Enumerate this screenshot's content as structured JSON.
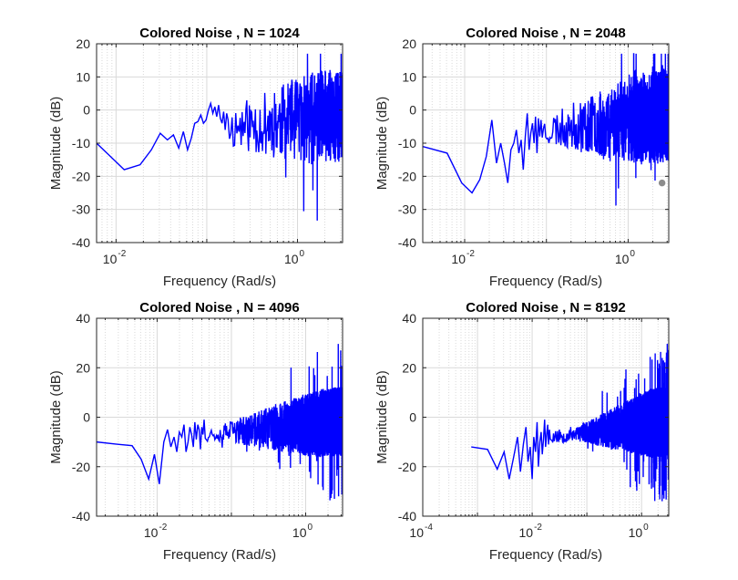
{
  "figure": {
    "background": "#ffffff",
    "line_color": "#0000ff",
    "grid_color": "#d9d9d9",
    "axis_color": "#262626"
  },
  "chart_data": [
    {
      "type": "line",
      "title": "Colored Noise , N = 1024",
      "xlabel": "Frequency (Rad/s)",
      "ylabel": "Magnitude (dB)",
      "xscale": "log",
      "xlim": [
        0.0061,
        3.14
      ],
      "ylim": [
        -40,
        20
      ],
      "xticks": [
        0.01,
        1
      ],
      "xtick_labels": [
        "10",
        "10"
      ],
      "xtick_exponents": [
        "-2",
        "0"
      ],
      "yticks": [
        20,
        10,
        0,
        -10,
        -20,
        -30,
        -40
      ],
      "ytick_labels": [
        "20",
        "10",
        "0",
        "-10",
        "-20",
        "-30",
        "-40"
      ],
      "grid": true,
      "gen": {
        "seed": 11,
        "k": 512,
        "n": 1024
      },
      "series": [
        {
          "x": [
            0.0061,
            0.0123,
            0.0184,
            0.0245,
            0.0307,
            0.0368,
            0.0429,
            0.0491,
            0.0552,
            0.0614,
            0.0675,
            0.0736,
            0.0798,
            0.0859,
            0.092,
            0.0982,
            0.1043,
            0.1104,
            0.1166,
            0.1227,
            0.1288,
            0.135,
            0.1411,
            0.1473,
            0.1534,
            0.1595,
            0.1657,
            0.1718
          ],
          "y": [
            -10,
            -18,
            -16.5,
            -12,
            -7,
            -9,
            -7.5,
            -11.5,
            -6.5,
            -12,
            -8.5,
            -4,
            -3.5,
            -1.5,
            -4,
            -3,
            0,
            2,
            -1,
            1,
            -2,
            1.5,
            -2.5,
            -4,
            -0.5,
            -6,
            -1,
            -3
          ]
        }
      ]
    },
    {
      "type": "line",
      "title": "Colored Noise , N = 2048",
      "xlabel": "Frequency (Rad/s)",
      "ylabel": "Magnitude (dB)",
      "xscale": "log",
      "xlim": [
        0.00307,
        3.14
      ],
      "ylim": [
        -40,
        20
      ],
      "xticks": [
        0.01,
        1
      ],
      "xtick_labels": [
        "10",
        "10"
      ],
      "xtick_exponents": [
        "-2",
        "0"
      ],
      "yticks": [
        20,
        10,
        0,
        -10,
        -20,
        -30,
        -40
      ],
      "ytick_labels": [
        "20",
        "10",
        "0",
        "-10",
        "-20",
        "-30",
        "-40"
      ],
      "grid": true,
      "gen": {
        "seed": 23,
        "k": 1024,
        "n": 2048
      },
      "series": [
        {
          "x": [
            0.00307,
            0.0061,
            0.0092,
            0.0123,
            0.0153,
            0.0184,
            0.0215,
            0.0245,
            0.0276,
            0.0307,
            0.0337,
            0.0368,
            0.0399,
            0.0429,
            0.046,
            0.0491,
            0.0521,
            0.0552,
            0.0583,
            0.0614,
            0.0644,
            0.0675,
            0.0706,
            0.0736,
            0.0767,
            0.0798,
            0.0828,
            0.0859
          ],
          "y": [
            -11,
            -13,
            -22,
            -25,
            -21,
            -14,
            -3,
            -16,
            -10,
            -16,
            -22,
            -12,
            -10,
            -6,
            -13,
            -9,
            -18,
            -8,
            -1,
            -12,
            -7,
            -4,
            -10,
            -2,
            -13,
            -2.5,
            -8,
            -3
          ]
        }
      ],
      "marker": {
        "x": 2.6,
        "y": -22,
        "color": "#8c8c8c"
      }
    },
    {
      "type": "line",
      "title": "Colored Noise , N = 4096",
      "xlabel": "Frequency (Rad/s)",
      "ylabel": "Magnitude (dB)",
      "xscale": "log",
      "xlim": [
        0.00153,
        3.14
      ],
      "ylim": [
        -40,
        40
      ],
      "xticks": [
        0.01,
        1
      ],
      "xtick_labels": [
        "10",
        "10"
      ],
      "xtick_exponents": [
        "-2",
        "0"
      ],
      "yticks": [
        40,
        20,
        0,
        -20,
        -40
      ],
      "ytick_labels": [
        "40",
        "20",
        "0",
        "-20",
        "-40"
      ],
      "grid": true,
      "gen": {
        "seed": 37,
        "k": 2048,
        "n": 4096
      },
      "series": [
        {
          "x": [
            0.00153,
            0.00307,
            0.0046,
            0.0061,
            0.0077,
            0.0092,
            0.0107,
            0.0123,
            0.0138,
            0.0153,
            0.0169,
            0.0184,
            0.0199,
            0.0215,
            0.023,
            0.0245,
            0.0261,
            0.0276,
            0.0291,
            0.0307,
            0.0322,
            0.0337,
            0.0353,
            0.0368,
            0.0383,
            0.0399,
            0.0414,
            0.0429
          ],
          "y": [
            -10,
            -11,
            -11.5,
            -17,
            -25,
            -15,
            -27,
            -10,
            -5,
            -12,
            -8,
            -14,
            -6,
            -8,
            -3,
            -14,
            -10,
            -4,
            -7,
            -12,
            -2,
            -9,
            -3,
            -5,
            -13,
            -4,
            -7,
            -1
          ]
        }
      ]
    },
    {
      "type": "line",
      "title": "Colored Noise , N = 8192",
      "xlabel": "Frequency (Rad/s)",
      "ylabel": "Magnitude (dB)",
      "xscale": "log",
      "xlim": [
        0.0001,
        3.14
      ],
      "ylim": [
        -40,
        40
      ],
      "xticks": [
        0.0001,
        0.01,
        1
      ],
      "xtick_labels": [
        "10",
        "10",
        "10"
      ],
      "xtick_exponents": [
        "-4",
        "-2",
        "0"
      ],
      "yticks": [
        40,
        20,
        0,
        -20,
        -40
      ],
      "ytick_labels": [
        "40",
        "20",
        "0",
        "-20",
        "-40"
      ],
      "grid": true,
      "gen": {
        "seed": 53,
        "k": 4096,
        "n": 8192
      },
      "series": [
        {
          "x": [
            0.00077,
            0.00153,
            0.0023,
            0.00307,
            0.0038,
            0.0046,
            0.0054,
            0.0061,
            0.0069,
            0.0077,
            0.0084,
            0.0092,
            0.01,
            0.0107,
            0.0115,
            0.0123,
            0.013,
            0.0138,
            0.0146,
            0.0153,
            0.0161,
            0.0169,
            0.0176,
            0.0184,
            0.0192,
            0.0199,
            0.0207,
            0.0215
          ],
          "y": [
            -12,
            -13,
            -21,
            -14,
            -25,
            -16,
            -8,
            -22,
            -11,
            -4,
            -18,
            -12,
            -25,
            -8,
            -14,
            -2,
            -20,
            -10,
            -6,
            -15,
            -9,
            -1,
            -12,
            -7,
            -3,
            -11,
            -5,
            -9
          ]
        }
      ]
    }
  ]
}
